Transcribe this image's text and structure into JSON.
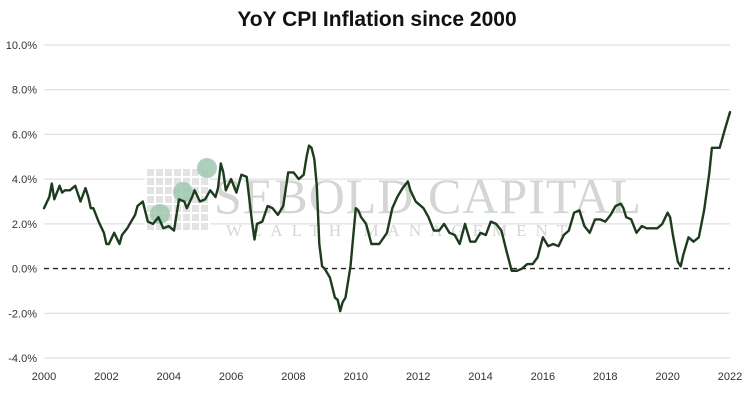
{
  "colors": {
    "line": "#1d3b1d",
    "grid": "#d9d9d9",
    "zero_line": "#222222",
    "watermark": "#d4d6d4",
    "logo_circles": "#9fc8b0"
  },
  "watermark": {
    "main": "SEBOLD CAPITAL",
    "sub": "WEALTH MANAGEMENT"
  },
  "chart_data": {
    "type": "line",
    "title": "YoY CPI Inflation since 2000",
    "xlabel": "",
    "ylabel": "",
    "xlim": [
      2000,
      2022
    ],
    "ylim": [
      -4,
      10
    ],
    "grid": true,
    "legend": "none",
    "x_ticks": [
      2000,
      2002,
      2004,
      2006,
      2008,
      2010,
      2012,
      2014,
      2016,
      2018,
      2020,
      2022
    ],
    "x_tick_labels": [
      "2000",
      "2002",
      "2004",
      "2006",
      "2008",
      "2010",
      "2012",
      "2014",
      "2016",
      "2018",
      "2020",
      "2022"
    ],
    "y_ticks": [
      -4,
      -2,
      0,
      2,
      4,
      6,
      8,
      10
    ],
    "y_tick_labels": [
      "-4.0%",
      "-2.0%",
      "0.0%",
      "2.0%",
      "4.0%",
      "6.0%",
      "8.0%",
      "10.0%"
    ],
    "series": [
      {
        "x": [
          2000.0,
          2000.17,
          2000.25,
          2000.33,
          2000.5,
          2000.58,
          2000.67,
          2000.83,
          2001.0,
          2001.17,
          2001.33,
          2001.42,
          2001.5,
          2001.58,
          2001.75,
          2001.92,
          2002.0,
          2002.08,
          2002.25,
          2002.42,
          2002.5,
          2002.67,
          2002.75,
          2002.92,
          2003.0,
          2003.17,
          2003.33,
          2003.5,
          2003.67,
          2003.83,
          2004.0,
          2004.17,
          2004.33,
          2004.5,
          2004.58,
          2004.75,
          2004.83,
          2005.0,
          2005.17,
          2005.33,
          2005.5,
          2005.58,
          2005.67,
          2005.75,
          2005.83,
          2006.0,
          2006.17,
          2006.33,
          2006.5,
          2006.67,
          2006.75,
          2006.83,
          2007.0,
          2007.17,
          2007.33,
          2007.5,
          2007.67,
          2007.83,
          2008.0,
          2008.17,
          2008.33,
          2008.42,
          2008.5,
          2008.58,
          2008.67,
          2008.75,
          2008.83,
          2008.92,
          2009.0,
          2009.17,
          2009.33,
          2009.42,
          2009.5,
          2009.58,
          2009.67,
          2009.83,
          2010.0,
          2010.08,
          2010.17,
          2010.33,
          2010.5,
          2010.67,
          2010.75,
          2011.0,
          2011.17,
          2011.33,
          2011.5,
          2011.67,
          2011.75,
          2011.92,
          2012.0,
          2012.17,
          2012.33,
          2012.5,
          2012.67,
          2012.83,
          2013.0,
          2013.17,
          2013.33,
          2013.5,
          2013.67,
          2013.83,
          2014.0,
          2014.17,
          2014.33,
          2014.5,
          2014.67,
          2014.83,
          2015.0,
          2015.17,
          2015.33,
          2015.5,
          2015.67,
          2015.83,
          2016.0,
          2016.17,
          2016.33,
          2016.5,
          2016.67,
          2016.83,
          2017.0,
          2017.17,
          2017.33,
          2017.5,
          2017.67,
          2017.83,
          2018.0,
          2018.17,
          2018.33,
          2018.5,
          2018.58,
          2018.67,
          2018.83,
          2019.0,
          2019.17,
          2019.33,
          2019.5,
          2019.67,
          2019.83,
          2020.0,
          2020.08,
          2020.17,
          2020.33,
          2020.42,
          2020.5,
          2020.67,
          2020.83,
          2021.0,
          2021.17,
          2021.33,
          2021.42,
          2021.5,
          2021.67,
          2021.83,
          2022.0
        ],
        "values": [
          2.7,
          3.2,
          3.8,
          3.1,
          3.7,
          3.4,
          3.5,
          3.5,
          3.7,
          3.0,
          3.6,
          3.2,
          2.7,
          2.7,
          2.1,
          1.6,
          1.1,
          1.1,
          1.6,
          1.1,
          1.5,
          1.8,
          2.0,
          2.4,
          2.8,
          3.0,
          2.1,
          2.0,
          2.3,
          1.8,
          1.9,
          1.7,
          3.1,
          3.0,
          2.7,
          3.2,
          3.5,
          3.0,
          3.1,
          3.5,
          3.2,
          3.6,
          4.7,
          4.3,
          3.5,
          4.0,
          3.4,
          4.2,
          4.1,
          2.1,
          1.3,
          2.0,
          2.1,
          2.8,
          2.7,
          2.4,
          2.8,
          4.3,
          4.3,
          4.0,
          4.2,
          5.0,
          5.5,
          5.4,
          4.9,
          3.7,
          1.1,
          0.1,
          0.0,
          -0.4,
          -1.3,
          -1.4,
          -1.9,
          -1.5,
          -1.3,
          0.1,
          2.7,
          2.6,
          2.3,
          2.0,
          1.1,
          1.1,
          1.1,
          1.6,
          2.7,
          3.2,
          3.6,
          3.9,
          3.5,
          3.0,
          2.9,
          2.7,
          2.3,
          1.7,
          1.7,
          2.0,
          1.6,
          1.5,
          1.1,
          2.0,
          1.2,
          1.2,
          1.6,
          1.5,
          2.1,
          2.0,
          1.7,
          0.8,
          -0.1,
          -0.1,
          0.0,
          0.2,
          0.2,
          0.5,
          1.4,
          1.0,
          1.1,
          1.0,
          1.5,
          1.7,
          2.5,
          2.6,
          1.9,
          1.6,
          2.2,
          2.2,
          2.1,
          2.4,
          2.8,
          2.9,
          2.7,
          2.3,
          2.2,
          1.6,
          1.9,
          1.8,
          1.8,
          1.8,
          2.0,
          2.5,
          2.3,
          1.5,
          0.3,
          0.1,
          0.6,
          1.4,
          1.2,
          1.4,
          2.6,
          4.2,
          5.4,
          5.4,
          5.4,
          6.2,
          7.0
        ]
      }
    ]
  }
}
